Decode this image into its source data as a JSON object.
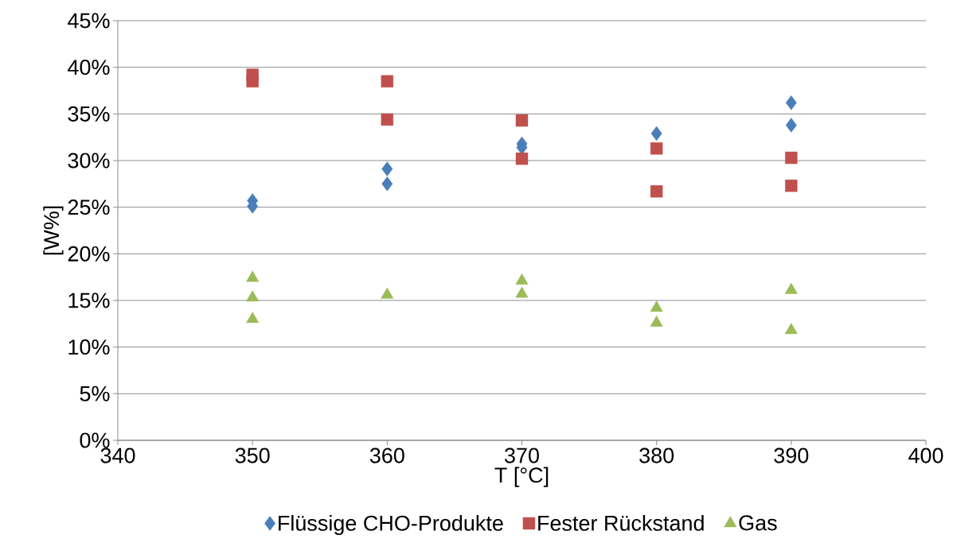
{
  "chart_data": {
    "type": "scatter",
    "xlabel": "T [°C]",
    "ylabel": "[W%]",
    "xlim": [
      340,
      400
    ],
    "xticks": [
      340,
      350,
      360,
      370,
      380,
      390,
      400
    ],
    "ylim": [
      0,
      45
    ],
    "yticks": [
      {
        "value": 0,
        "label": "0%"
      },
      {
        "value": 5,
        "label": "5%"
      },
      {
        "value": 10,
        "label": "10%"
      },
      {
        "value": 15,
        "label": "15%"
      },
      {
        "value": 20,
        "label": "20%"
      },
      {
        "value": 25,
        "label": "25%"
      },
      {
        "value": 30,
        "label": "30%"
      },
      {
        "value": 35,
        "label": "35%"
      },
      {
        "value": 40,
        "label": "40%"
      },
      {
        "value": 45,
        "label": "45%"
      }
    ],
    "grid": "y",
    "legend": "bottom",
    "series": [
      {
        "name": "Flüssige CHO-Produkte",
        "color": "#4a7ebb",
        "marker": "diamond",
        "x": [
          350,
          350,
          360,
          360,
          370,
          370,
          380,
          390,
          390
        ],
        "values": [
          25.7,
          25.1,
          29.1,
          27.5,
          31.8,
          31.4,
          32.9,
          36.2,
          33.8
        ]
      },
      {
        "name": "Fester Rückstand",
        "color": "#c0504d",
        "marker": "square",
        "x": [
          350,
          350,
          360,
          360,
          370,
          370,
          380,
          380,
          390,
          390
        ],
        "values": [
          39.2,
          38.5,
          38.5,
          34.4,
          34.3,
          30.2,
          31.3,
          26.7,
          30.3,
          27.3
        ]
      },
      {
        "name": "Gas",
        "color": "#9bbb59",
        "marker": "triangle",
        "x": [
          350,
          350,
          350,
          360,
          370,
          370,
          380,
          380,
          390,
          390
        ],
        "values": [
          17.4,
          15.3,
          13.0,
          15.6,
          17.1,
          15.7,
          14.2,
          12.6,
          16.1,
          11.8
        ]
      }
    ]
  }
}
